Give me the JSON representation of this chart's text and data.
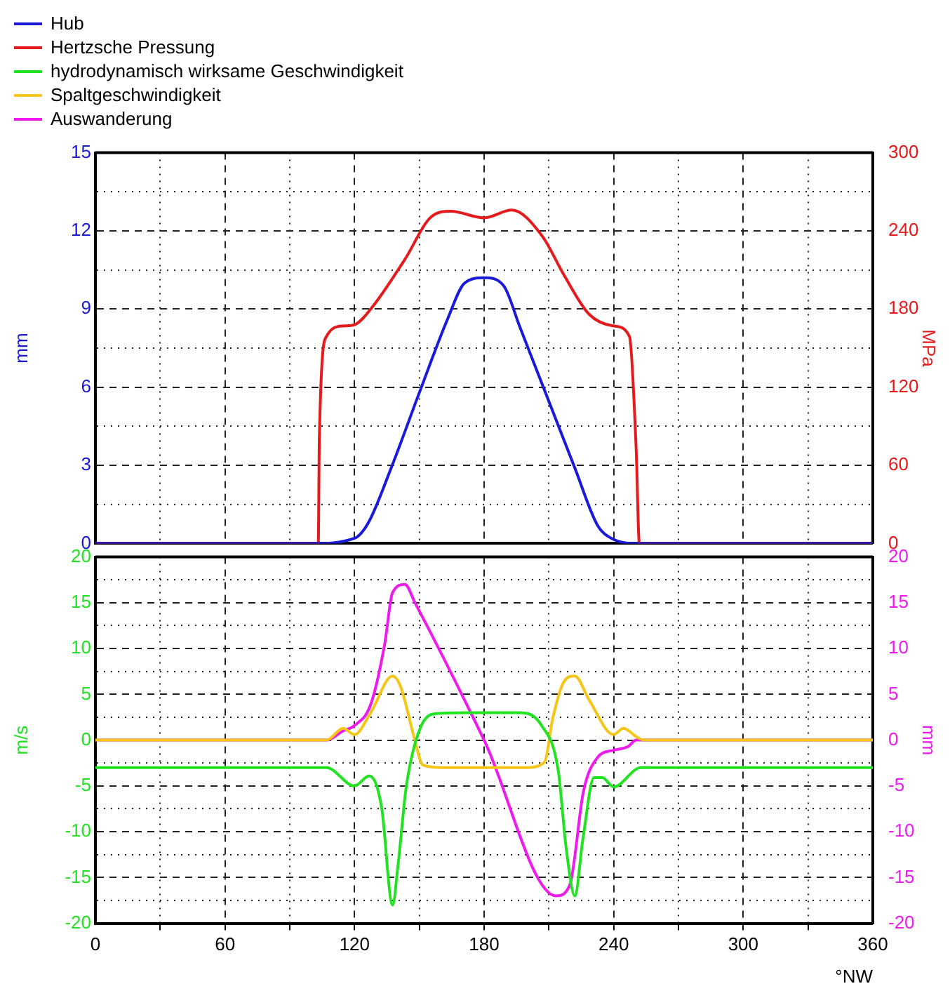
{
  "chart_data": [
    {
      "type": "line",
      "legend": "top left",
      "ylabel": "mm",
      "y2label": "MPa",
      "tick_labels": "y",
      "grid": true,
      "xlim": [
        0,
        360
      ],
      "xticks": [
        0,
        {
          "value": 30,
          "label": null
        },
        60,
        {
          "value": 90,
          "label": null
        },
        120,
        {
          "value": 150,
          "label": null
        },
        180,
        {
          "value": 210,
          "label": null
        },
        240,
        {
          "value": 270,
          "label": null
        },
        300,
        {
          "value": 330,
          "label": null
        },
        360
      ],
      "ylim": [
        0,
        15
      ],
      "yticks": [
        0,
        {
          "value": 1.5,
          "label": null
        },
        3,
        {
          "value": 4.5,
          "label": null
        },
        6,
        {
          "value": 7.5,
          "label": null
        },
        9,
        {
          "value": 10.5,
          "label": null
        },
        12,
        {
          "value": 13.5,
          "label": null
        },
        15
      ],
      "y2lim": [
        0,
        300
      ],
      "y2ticks": [
        0,
        60,
        120,
        180,
        240,
        300
      ],
      "series": [
        {
          "name": "Hub",
          "color": "#1a1ad8",
          "axis": "y",
          "x": [
            0,
            100,
            120,
            126.4,
            136.5,
            150.5,
            163,
            171,
            180,
            189,
            196.6,
            222,
            232.5,
            238.9,
            251.7,
            360
          ],
          "values": [
            0,
            0,
            0.2,
            0.8,
            2.8,
            5.9,
            8.6,
            10,
            10.2,
            9.9,
            8.3,
            2.9,
            0.7,
            0.2,
            0,
            0
          ]
        },
        {
          "name": "Hertzsche Pressung",
          "color": "#e41a1c",
          "axis": "y2",
          "x": [
            0,
            103.2,
            103.7,
            107,
            114.7,
            120,
            127.5,
            142.9,
            155.7,
            164.6,
            180,
            192.8,
            206.9,
            217,
            228.6,
            240,
            247.3,
            250.4,
            251.9,
            360
          ],
          "values": [
            0,
            0,
            82,
            159,
            167,
            168,
            180,
            217,
            251,
            255,
            250,
            256,
            236,
            206,
            176,
            167,
            159,
            73,
            0,
            0
          ]
        }
      ]
    },
    {
      "type": "line",
      "legend": "top left",
      "ylabel": "m/s",
      "y2label": "mm",
      "xlabel": "°NW",
      "grid": true,
      "xlim": [
        0,
        360
      ],
      "xticks": [
        0,
        {
          "value": 30,
          "label": null
        },
        60,
        {
          "value": 90,
          "label": null
        },
        120,
        {
          "value": 150,
          "label": null
        },
        180,
        {
          "value": 210,
          "label": null
        },
        240,
        {
          "value": 270,
          "label": null
        },
        300,
        {
          "value": 330,
          "label": null
        },
        360
      ],
      "ylim": [
        -20,
        20
      ],
      "yticks": [
        -20,
        {
          "value": -17.5,
          "label": null
        },
        -15,
        {
          "value": -12.5,
          "label": null
        },
        -10,
        {
          "value": -7.5,
          "label": null
        },
        -5,
        {
          "value": -2.5,
          "label": null
        },
        0,
        {
          "value": 2.5,
          "label": null
        },
        5,
        {
          "value": 7.5,
          "label": null
        },
        10,
        {
          "value": 12.5,
          "label": null
        },
        15,
        {
          "value": 17.5,
          "label": null
        },
        20
      ],
      "y2lim": [
        -20,
        20
      ],
      "y2ticks": [
        -20,
        -15,
        -10,
        -5,
        0,
        5,
        10,
        15,
        20
      ],
      "series": [
        {
          "name": "hydrodynamisch wirksame Geschwindigkeit",
          "color": "#22e322",
          "axis": "y",
          "x": [
            0,
            107,
            120,
            126.8,
            132.5,
            137.6,
            140.2,
            144,
            150.4,
            158,
            173.4,
            196.4,
            206.6,
            214.3,
            218,
            222,
            225.8,
            230.9,
            234.7,
            240,
            252.6,
            360
          ],
          "values": [
            -3,
            -3,
            -5,
            -3.9,
            -7.3,
            -18,
            -13.5,
            -5,
            1.3,
            2.9,
            3,
            3,
            1.6,
            -3.3,
            -11.8,
            -17,
            -10.7,
            -4.1,
            -4.1,
            -5.1,
            -3,
            -3
          ]
        },
        {
          "name": "Spaltgeschwindigkeit",
          "color": "#f5c518",
          "axis": "y",
          "x": [
            0,
            107,
            114.7,
            120,
            127.5,
            137.6,
            141.4,
            147.8,
            151.6,
            160.6,
            199,
            208,
            211.8,
            217,
            222,
            228.6,
            240,
            244.5,
            250.4,
            254,
            360
          ],
          "values": [
            0,
            0,
            1.3,
            0.6,
            3,
            7,
            5.8,
            0.1,
            -2.7,
            -3,
            -3,
            -2.4,
            2.4,
            6.4,
            7,
            4.4,
            0.6,
            1.3,
            0.4,
            0,
            0
          ]
        },
        {
          "name": "Auswanderung",
          "color": "#ee1aee",
          "axis": "y2",
          "x": [
            0,
            107,
            114.7,
            120,
            127.5,
            133.9,
            137.6,
            143.3,
            148,
            180,
            213.3,
            219.7,
            226,
            232.5,
            240,
            246.7,
            250.4,
            360
          ],
          "values": [
            0,
            0,
            1,
            1.6,
            3.9,
            10.4,
            16.1,
            17,
            15,
            0,
            -17,
            -15.8,
            -5.6,
            -1.9,
            -1.1,
            -0.7,
            0,
            0
          ]
        }
      ]
    }
  ]
}
